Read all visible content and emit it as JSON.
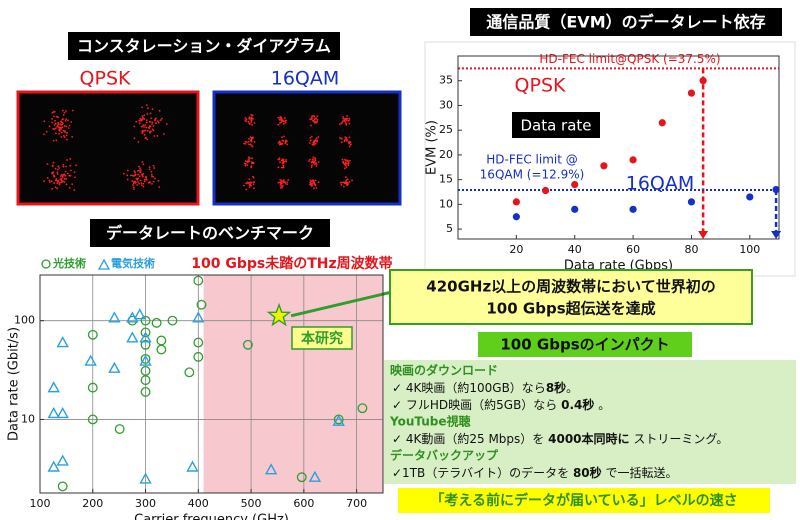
{
  "constellation": {
    "title": "コンスタレーション・ダイアグラム",
    "panels": [
      {
        "label": "QPSK",
        "color": "#e8141c"
      },
      {
        "label": "16QAM",
        "color": "#1530c8"
      }
    ]
  },
  "chart_data": [
    {
      "type": "scatter",
      "title": "通信品質（EVM）のデータレート依存",
      "xlabel": "Data rate (Gbps)",
      "ylabel": "EVM (%)",
      "xlim": [
        0,
        110
      ],
      "xticks": [
        20,
        40,
        60,
        80,
        100
      ],
      "ylim": [
        3,
        40
      ],
      "yticks": [
        5,
        10,
        15,
        20,
        25,
        30,
        35
      ],
      "annotation": "Data rate",
      "series": [
        {
          "name": "QPSK",
          "color": "#e8141c",
          "marker": "dot",
          "x": [
            20,
            30,
            40,
            50,
            60,
            70,
            80,
            84
          ],
          "values": [
            10.5,
            12.8,
            14,
            17.8,
            19,
            26.5,
            32.5,
            35
          ]
        },
        {
          "name": "16QAM",
          "color": "#1530c8",
          "marker": "dot",
          "x": [
            20,
            40,
            60,
            80,
            100,
            109
          ],
          "values": [
            7.5,
            9,
            9,
            10.5,
            11.5,
            13
          ]
        }
      ],
      "reference_lines": [
        {
          "value": 37.5,
          "label": "HD-FEC limit@QPSK (=37.5%)",
          "color": "#e8141c"
        },
        {
          "value": 12.9,
          "label": [
            "HD-FEC limit @",
            "16QAM (=12.9%)"
          ],
          "color": "#1530c8"
        }
      ]
    },
    {
      "type": "scatter",
      "title": "データレートのベンチマーク",
      "xlabel": "Carrier frequency (GHz)",
      "ylabel": "Data rate (Gbit/s)",
      "log_y": true,
      "grid": true,
      "xlim": [
        100,
        750
      ],
      "xticks": [
        100,
        200,
        300,
        400,
        500,
        600,
        700
      ],
      "ylim": [
        1.8,
        290
      ],
      "yticks": [
        10,
        100
      ],
      "shaded_region": {
        "x": [
          410,
          750
        ],
        "label": "100 Gbps未踏のTHz周波数帯",
        "color": "#f7c9cf"
      },
      "series": [
        {
          "name": "光技術",
          "color": "#2f9e2f",
          "marker": "circle",
          "x": [
            143,
            200,
            200,
            200,
            251,
            275,
            300,
            300,
            300,
            300,
            300,
            300,
            300,
            321,
            330,
            330,
            351,
            383,
            400,
            400,
            400,
            406,
            494,
            596,
            666,
            711
          ],
          "values": [
            2.1,
            72,
            21,
            10,
            8,
            100,
            100,
            76,
            57,
            41,
            31,
            25,
            19,
            95,
            63,
            51,
            100,
            30,
            254,
            60,
            43,
            145,
            57,
            2.6,
            10,
            13
          ]
        },
        {
          "name": "電気技術",
          "color": "#2aa0e0",
          "marker": "triangle",
          "x": [
            126,
            126,
            143,
            143,
            126,
            143,
            196,
            241,
            241,
            275,
            275,
            289,
            300,
            300,
            300,
            389,
            400,
            538,
            621,
            666
          ],
          "values": [
            21,
            11.5,
            11.5,
            60,
            3.3,
            3.8,
            39,
            107,
            33,
            107,
            67,
            115,
            67,
            39,
            2.5,
            3.3,
            107,
            3.1,
            2.6,
            9.6
          ]
        },
        {
          "name": "本研究",
          "color": "#2f9e2f",
          "fill": "#f2f200",
          "marker": "star",
          "x": [
            553
          ],
          "values": [
            112
          ]
        }
      ]
    }
  ],
  "callout": {
    "lines": [
      "420GHz以上の周波数帯において世界初の",
      "100 Gbps超伝送を達成"
    ]
  },
  "impact": {
    "title": "100 Gbpsのインパクト",
    "sections": [
      {
        "heading": "映画のダウンロード",
        "items": [
          [
            "✓ 4K映画（約100GB）なら",
            "8秒",
            "。"
          ],
          [
            "✓ フルHD映画（約5GB）なら ",
            "0.4秒",
            " 。"
          ]
        ]
      },
      {
        "heading": "YouTube視聴",
        "items": [
          [
            "✓  4K動画（約25 Mbps）を ",
            "4000本同時に",
            " ストリーミング。"
          ]
        ]
      },
      {
        "heading": "データバックアップ",
        "items": [
          [
            "✓1TB（テラバイト）のデータを ",
            "80秒",
            " で一括転送。"
          ]
        ]
      }
    ],
    "banner": "「考える前にデータが届いている」レベルの速さ"
  }
}
